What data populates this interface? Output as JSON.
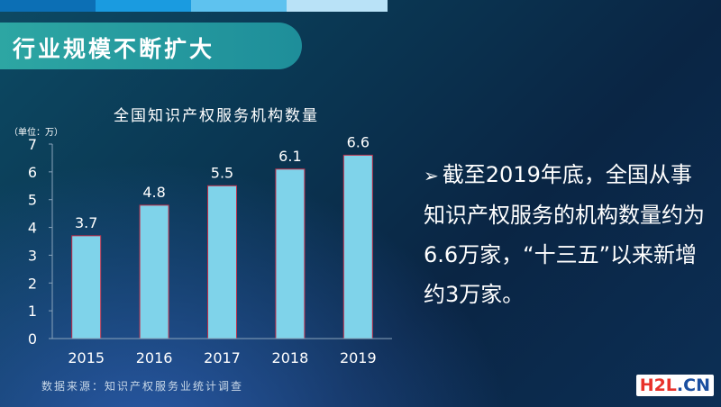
{
  "header": {
    "title": "行业规模不断扩大"
  },
  "chart_data": {
    "type": "bar",
    "title": "全国知识产权服务机构数量",
    "unit_label": "（单位：万）",
    "categories": [
      "2015",
      "2016",
      "2017",
      "2018",
      "2019"
    ],
    "values": [
      3.7,
      4.8,
      5.5,
      6.1,
      6.6
    ],
    "data_labels": [
      "3.7",
      "4.8",
      "5.5",
      "6.1",
      "6.6"
    ],
    "y_ticks": [
      "0",
      "1",
      "2",
      "3",
      "4",
      "5",
      "6",
      "7"
    ],
    "ylim": [
      0,
      7
    ],
    "grid": false,
    "bar_color": "#7fd3ea",
    "bar_edge_color": "#c0304a"
  },
  "bullet": {
    "arrow": "➢",
    "text": "截至2019年底，全国从事知识产权服务的机构数量约为6.6万家，“十三五”以来新增约3万家。"
  },
  "source_note": "数据来源：知识产权服务业统计调查",
  "watermark": {
    "part1": "H2L",
    "part2": ".CN"
  },
  "colors": {
    "accent": "#2da6a3",
    "bar": "#7fd3ea"
  }
}
